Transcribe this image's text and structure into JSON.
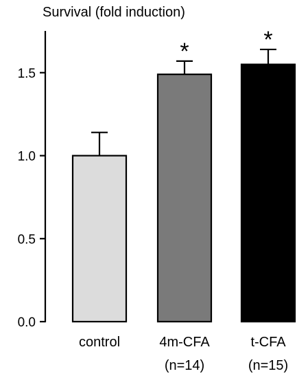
{
  "chart_data": {
    "type": "bar",
    "ylabel": "Survival (fold induction)",
    "ylim": [
      0,
      1.75
    ],
    "yticks": [
      {
        "value": 0.0,
        "label": "0.0"
      },
      {
        "value": 0.5,
        "label": "0.5"
      },
      {
        "value": 1.0,
        "label": "1.0"
      },
      {
        "value": 1.5,
        "label": "1.5"
      }
    ],
    "grid": false,
    "bars": [
      {
        "label": "control",
        "sublabel": "",
        "value": 1.0,
        "error": 0.14,
        "color": "#dcdcdc",
        "significance": ""
      },
      {
        "label": "4m-CFA",
        "sublabel": "(n=14)",
        "value": 1.49,
        "error": 0.08,
        "color": "#7a7a7a",
        "significance": "*"
      },
      {
        "label": "t-CFA",
        "sublabel": "(n=15)",
        "value": 1.55,
        "error": 0.09,
        "color": "#000000",
        "significance": "*"
      }
    ]
  }
}
